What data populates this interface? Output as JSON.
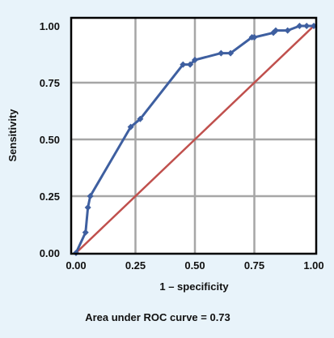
{
  "chart_data": {
    "type": "line",
    "title": "",
    "xlabel": "1 – specificity",
    "ylabel": "Sensitivity",
    "caption": "Area under ROC curve = 0.73",
    "xlim": [
      0,
      1
    ],
    "ylim": [
      0,
      1
    ],
    "grid": true,
    "x_ticks": [
      "0.00",
      "0.25",
      "0.50",
      "0.75",
      "1.00"
    ],
    "y_ticks": [
      "0.00",
      "0.25",
      "0.50",
      "0.75",
      "1.00"
    ],
    "series": [
      {
        "color": "#3e5fa0",
        "markers": true,
        "points": [
          [
            0.0,
            0.0
          ],
          [
            0.04,
            0.09
          ],
          [
            0.05,
            0.2
          ],
          [
            0.06,
            0.25
          ],
          [
            0.23,
            0.555
          ],
          [
            0.27,
            0.59
          ],
          [
            0.45,
            0.83
          ],
          [
            0.48,
            0.83
          ],
          [
            0.5,
            0.85
          ],
          [
            0.61,
            0.88
          ],
          [
            0.65,
            0.88
          ],
          [
            0.74,
            0.95
          ],
          [
            0.75,
            0.95
          ],
          [
            0.83,
            0.97
          ],
          [
            0.84,
            0.98
          ],
          [
            0.89,
            0.98
          ],
          [
            0.94,
            1.0
          ],
          [
            0.97,
            1.0
          ],
          [
            1.0,
            1.0
          ]
        ]
      },
      {
        "color": "#c0504d",
        "markers": false,
        "points": [
          [
            0,
            0
          ],
          [
            1,
            1
          ]
        ]
      }
    ],
    "colors": {
      "background": "#e8f3fa",
      "plot_area": "#ffffff",
      "grid": "#a6a6a6",
      "frame": "#000000"
    }
  }
}
